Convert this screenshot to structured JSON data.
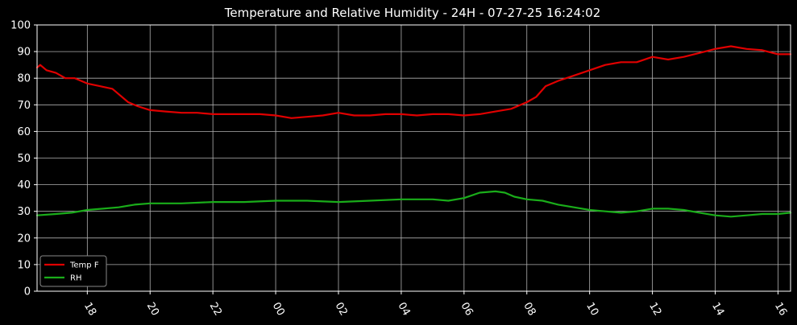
{
  "chart_data": {
    "type": "line",
    "title": "Temperature and Relative Humidity - 24H - 07-27-25 16:24:02",
    "xlabel": "",
    "ylabel": "",
    "x_unit": "hour",
    "xlim": [
      16.4,
      40.4
    ],
    "ylim": [
      0,
      100
    ],
    "y_ticks": [
      0,
      10,
      20,
      30,
      40,
      50,
      60,
      70,
      80,
      90,
      100
    ],
    "x_ticks": [
      {
        "value": 18,
        "label": "18"
      },
      {
        "value": 20,
        "label": "20"
      },
      {
        "value": 22,
        "label": "22"
      },
      {
        "value": 24,
        "label": "00"
      },
      {
        "value": 26,
        "label": "02"
      },
      {
        "value": 28,
        "label": "04"
      },
      {
        "value": 30,
        "label": "06"
      },
      {
        "value": 32,
        "label": "08"
      },
      {
        "value": 34,
        "label": "10"
      },
      {
        "value": 36,
        "label": "12"
      },
      {
        "value": 38,
        "label": "14"
      },
      {
        "value": 40,
        "label": "16"
      }
    ],
    "grid": true,
    "legend_position": "bottom-left",
    "background": "#000000",
    "series": [
      {
        "name": "Temp F",
        "color": "#e00000",
        "x": [
          16.4,
          16.5,
          16.7,
          17.0,
          17.3,
          17.6,
          18.0,
          18.4,
          18.8,
          19.0,
          19.3,
          19.6,
          20.0,
          20.5,
          21.0,
          21.5,
          22.0,
          22.5,
          23.0,
          23.5,
          24.0,
          24.5,
          25.0,
          25.5,
          26.0,
          26.5,
          27.0,
          27.5,
          28.0,
          28.5,
          29.0,
          29.5,
          30.0,
          30.5,
          31.0,
          31.5,
          32.0,
          32.3,
          32.6,
          33.0,
          33.5,
          34.0,
          34.5,
          35.0,
          35.5,
          36.0,
          36.5,
          37.0,
          37.5,
          38.0,
          38.5,
          39.0,
          39.5,
          40.0,
          40.4
        ],
        "values": [
          84,
          85,
          83,
          82,
          80,
          80,
          78,
          77,
          76,
          74,
          71,
          69.5,
          68,
          67.5,
          67,
          67,
          66.5,
          66.5,
          66.5,
          66.5,
          66,
          65,
          65.5,
          66,
          67,
          66,
          66,
          66.5,
          66.5,
          66,
          66.5,
          66.5,
          66,
          66.5,
          67.5,
          68.5,
          71,
          73,
          77,
          79,
          81,
          83,
          85,
          86,
          86,
          88,
          87,
          88,
          89.5,
          91,
          92,
          91,
          90.5,
          89,
          89
        ]
      },
      {
        "name": "RH",
        "color": "#1aad1a",
        "x": [
          16.4,
          17.0,
          17.5,
          18.0,
          18.5,
          19.0,
          19.5,
          20.0,
          20.5,
          21.0,
          22.0,
          23.0,
          24.0,
          25.0,
          26.0,
          27.0,
          28.0,
          29.0,
          29.5,
          30.0,
          30.5,
          31.0,
          31.3,
          31.6,
          32.0,
          32.5,
          33.0,
          33.5,
          34.0,
          34.5,
          35.0,
          35.5,
          36.0,
          36.5,
          37.0,
          37.5,
          38.0,
          38.5,
          39.0,
          39.5,
          40.0,
          40.4
        ],
        "values": [
          28.5,
          29,
          29.5,
          30.5,
          31,
          31.5,
          32.5,
          33,
          33,
          33,
          33.5,
          33.5,
          34,
          34,
          33.5,
          34,
          34.5,
          34.5,
          34,
          35,
          37,
          37.5,
          37,
          35.5,
          34.5,
          34,
          32.5,
          31.5,
          30.5,
          30,
          29.5,
          30,
          31,
          31,
          30.5,
          29.5,
          28.5,
          28,
          28.5,
          29,
          29,
          29.5
        ]
      }
    ]
  }
}
